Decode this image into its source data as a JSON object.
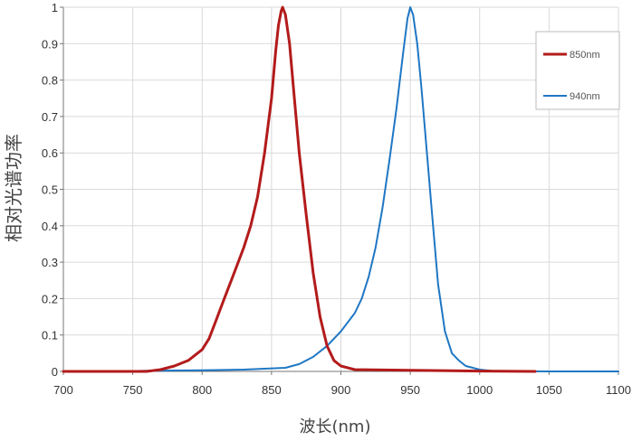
{
  "chart_data": {
    "type": "line",
    "title": "",
    "xlabel": "波长(nm)",
    "ylabel": "相对光谱功率",
    "xlim": [
      700,
      1100
    ],
    "ylim": [
      0,
      1
    ],
    "grid": true,
    "legend_position": "top-right",
    "x_ticks": [
      "700",
      "750",
      "800",
      "850",
      "900",
      "950",
      "1000",
      "1050",
      "1100"
    ],
    "y_ticks": [
      "0",
      "0.1",
      "0.2",
      "0.3",
      "0.4",
      "0.5",
      "0.6",
      "0.7",
      "0.8",
      "0.9",
      "1"
    ],
    "series": [
      {
        "name": "850nm",
        "color": "#b31b1b",
        "points": [
          [
            700,
            0
          ],
          [
            760,
            0
          ],
          [
            770,
            0.005
          ],
          [
            780,
            0.015
          ],
          [
            790,
            0.03
          ],
          [
            800,
            0.06
          ],
          [
            805,
            0.09
          ],
          [
            810,
            0.14
          ],
          [
            815,
            0.19
          ],
          [
            820,
            0.24
          ],
          [
            825,
            0.29
          ],
          [
            830,
            0.34
          ],
          [
            835,
            0.4
          ],
          [
            840,
            0.48
          ],
          [
            845,
            0.6
          ],
          [
            850,
            0.75
          ],
          [
            853,
            0.88
          ],
          [
            855,
            0.95
          ],
          [
            857,
            0.99
          ],
          [
            858,
            1.0
          ],
          [
            860,
            0.98
          ],
          [
            863,
            0.9
          ],
          [
            866,
            0.77
          ],
          [
            870,
            0.6
          ],
          [
            875,
            0.43
          ],
          [
            880,
            0.27
          ],
          [
            885,
            0.15
          ],
          [
            890,
            0.07
          ],
          [
            895,
            0.03
          ],
          [
            900,
            0.015
          ],
          [
            910,
            0.005
          ],
          [
            950,
            0.003
          ],
          [
            1000,
            0.001
          ],
          [
            1040,
            0
          ]
        ]
      },
      {
        "name": "940nm",
        "color": "#1f77c4",
        "points": [
          [
            700,
            0
          ],
          [
            740,
            0
          ],
          [
            760,
            0.002
          ],
          [
            800,
            0.003
          ],
          [
            830,
            0.005
          ],
          [
            860,
            0.01
          ],
          [
            870,
            0.02
          ],
          [
            880,
            0.04
          ],
          [
            890,
            0.07
          ],
          [
            900,
            0.11
          ],
          [
            910,
            0.16
          ],
          [
            915,
            0.2
          ],
          [
            920,
            0.26
          ],
          [
            925,
            0.34
          ],
          [
            930,
            0.45
          ],
          [
            935,
            0.58
          ],
          [
            940,
            0.72
          ],
          [
            945,
            0.88
          ],
          [
            948,
            0.97
          ],
          [
            950,
            1.0
          ],
          [
            952,
            0.98
          ],
          [
            955,
            0.9
          ],
          [
            958,
            0.78
          ],
          [
            962,
            0.6
          ],
          [
            966,
            0.42
          ],
          [
            970,
            0.24
          ],
          [
            975,
            0.11
          ],
          [
            980,
            0.05
          ],
          [
            985,
            0.03
          ],
          [
            990,
            0.015
          ],
          [
            1000,
            0.005
          ],
          [
            1010,
            0.001
          ],
          [
            1050,
            0
          ],
          [
            1100,
            0
          ]
        ]
      }
    ]
  }
}
